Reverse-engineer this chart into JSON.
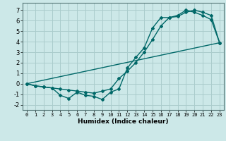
{
  "xlabel": "Humidex (Indice chaleur)",
  "ylabel": "",
  "background_color": "#cce8e8",
  "grid_color": "#aacccc",
  "line_color": "#006868",
  "xlim": [
    -0.5,
    23.5
  ],
  "ylim": [
    -2.5,
    7.7
  ],
  "xticks": [
    0,
    1,
    2,
    3,
    4,
    5,
    6,
    7,
    8,
    9,
    10,
    11,
    12,
    13,
    14,
    15,
    16,
    17,
    18,
    19,
    20,
    21,
    22,
    23
  ],
  "yticks": [
    -2,
    -1,
    0,
    1,
    2,
    3,
    4,
    5,
    6,
    7
  ],
  "line1_x": [
    0,
    1,
    2,
    3,
    4,
    5,
    6,
    7,
    8,
    9,
    10,
    11,
    12,
    13,
    14,
    15,
    16,
    17,
    18,
    19,
    20,
    21,
    22,
    23
  ],
  "line1_y": [
    0.0,
    -0.2,
    -0.3,
    -0.4,
    -1.1,
    -1.4,
    -0.8,
    -1.1,
    -1.2,
    -1.5,
    -0.8,
    -0.5,
    1.5,
    2.5,
    3.4,
    5.3,
    6.3,
    6.3,
    6.5,
    7.0,
    6.8,
    6.5,
    6.1,
    3.9
  ],
  "line2_x": [
    0,
    1,
    2,
    3,
    4,
    5,
    6,
    7,
    8,
    9,
    10,
    11,
    12,
    13,
    14,
    15,
    16,
    17,
    18,
    19,
    20,
    21,
    22,
    23
  ],
  "line2_y": [
    0.0,
    -0.2,
    -0.3,
    -0.4,
    -0.5,
    -0.6,
    -0.7,
    -0.8,
    -0.9,
    -0.7,
    -0.5,
    0.5,
    1.2,
    2.0,
    3.0,
    4.2,
    5.5,
    6.3,
    6.4,
    6.8,
    7.0,
    6.8,
    6.5,
    3.9
  ],
  "line3_x": [
    0,
    23
  ],
  "line3_y": [
    0.0,
    3.9
  ],
  "tick_fontsize": 5.0,
  "xlabel_fontsize": 6.5
}
